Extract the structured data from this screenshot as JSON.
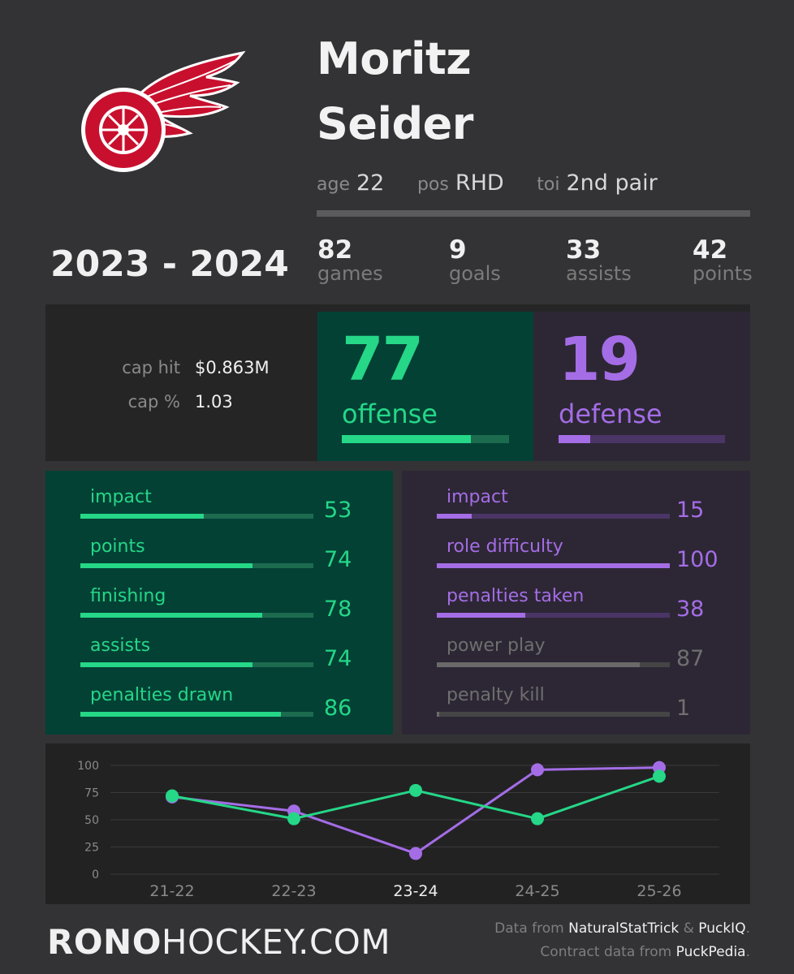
{
  "player": {
    "first_name": "Moritz",
    "last_name": "Seider",
    "age_label": "age",
    "age": "22",
    "pos_label": "pos",
    "pos": "RHD",
    "toi_label": "toi",
    "toi": "2nd pair"
  },
  "season": "2023 - 2024",
  "season_stats": [
    {
      "value": "82",
      "label": "games"
    },
    {
      "value": "9",
      "label": "goals"
    },
    {
      "value": "33",
      "label": "assists"
    },
    {
      "value": "42",
      "label": "points"
    }
  ],
  "contract": {
    "cap_hit_label": "cap hit",
    "cap_hit": "$0.863M",
    "cap_pct_label": "cap %",
    "cap_pct": "1.03"
  },
  "offense": {
    "score": "77",
    "label": "offense",
    "fraction": 0.77,
    "color": "#25d787"
  },
  "defense": {
    "score": "19",
    "label": "defense",
    "fraction": 0.19,
    "color": "#a46de6"
  },
  "offense_breakdown": [
    {
      "label": "impact",
      "value": "53",
      "fraction": 0.53
    },
    {
      "label": "points",
      "value": "74",
      "fraction": 0.74
    },
    {
      "label": "finishing",
      "value": "78",
      "fraction": 0.78
    },
    {
      "label": "assists",
      "value": "74",
      "fraction": 0.74
    },
    {
      "label": "penalties drawn",
      "value": "86",
      "fraction": 0.86
    }
  ],
  "defense_breakdown": [
    {
      "label": "impact",
      "value": "15",
      "fraction": 0.15,
      "muted": false
    },
    {
      "label": "role difficulty",
      "value": "100",
      "fraction": 1.0,
      "muted": false
    },
    {
      "label": "penalties taken",
      "value": "38",
      "fraction": 0.38,
      "muted": false
    },
    {
      "label": "power play",
      "value": "87",
      "fraction": 0.87,
      "muted": true
    },
    {
      "label": "penalty kill",
      "value": "1",
      "fraction": 0.01,
      "muted": true
    }
  ],
  "chart_data": {
    "type": "line",
    "categories": [
      "21-22",
      "22-23",
      "23-24",
      "24-25",
      "25-26"
    ],
    "highlight_category": "23-24",
    "series": [
      {
        "color": "#a46de6",
        "values": [
          71,
          58,
          19,
          96,
          98
        ]
      },
      {
        "color": "#25d787",
        "values": [
          72,
          51,
          77,
          51,
          90
        ]
      }
    ],
    "yticks": [
      "100",
      "75",
      "50",
      "25",
      "0"
    ],
    "ylim": [
      0,
      100
    ],
    "grid": true
  },
  "footer": {
    "brand_bold": "RONO",
    "brand_rest": "HOCKEY.COM",
    "credits_line1_prefix": "Data from ",
    "source1": "NaturalStatTrick",
    "amp": " & ",
    "source2": "PuckIQ",
    "period": ".",
    "credits_line2_prefix": "Contract data from ",
    "source3": "PuckPedia"
  },
  "team_logo": "red-wings-winged-wheel-logo"
}
